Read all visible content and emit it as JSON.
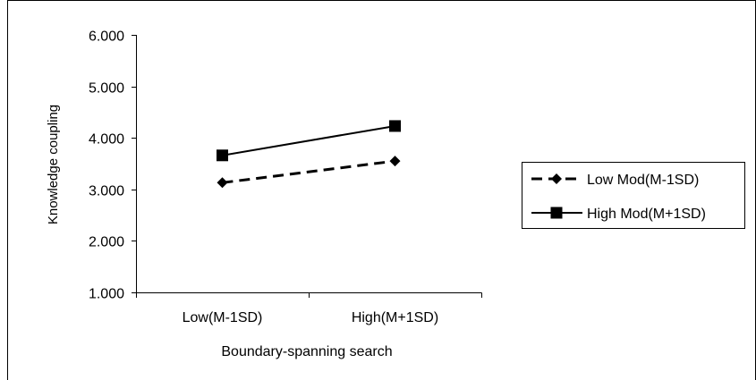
{
  "chart_data": {
    "type": "line",
    "xlabel": "Boundary-spanning search",
    "ylabel": "Knowledge coupling",
    "categories": [
      "Low(M-1SD)",
      "High(M+1SD)"
    ],
    "ylim": [
      1.0,
      6.0
    ],
    "yticks": [
      "1.000",
      "2.000",
      "3.000",
      "4.000",
      "5.000",
      "6.000"
    ],
    "grid": false,
    "legend_position": "right",
    "series": [
      {
        "name": "Low Mod(M-1SD)",
        "values": [
          3.13,
          3.55
        ],
        "line_style": "dashed",
        "marker": "diamond",
        "color": "#000000"
      },
      {
        "name": "High Mod(M+1SD)",
        "values": [
          3.66,
          4.23
        ],
        "line_style": "solid",
        "marker": "square",
        "color": "#000000"
      }
    ]
  }
}
